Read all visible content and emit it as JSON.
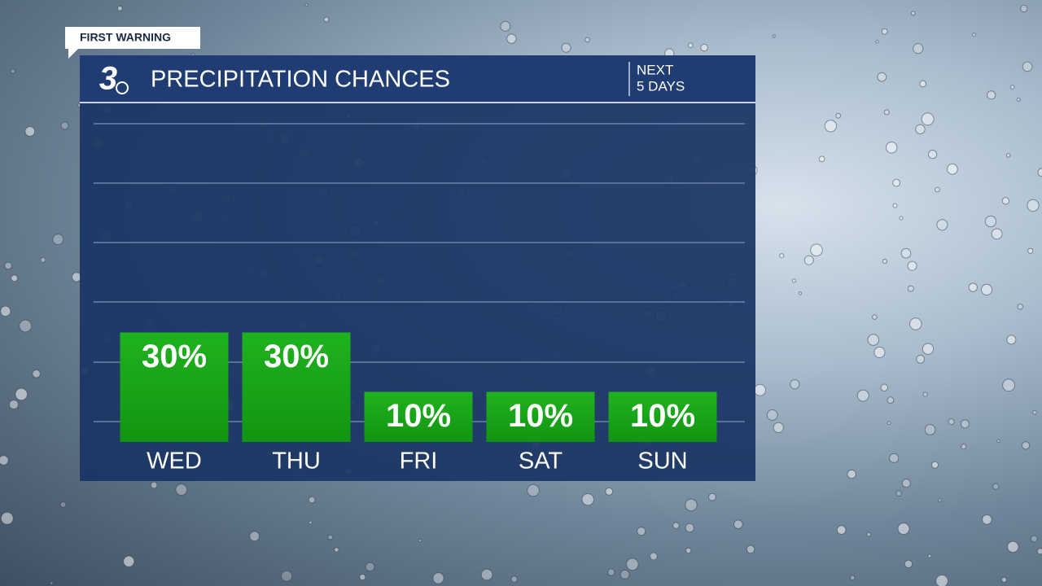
{
  "branding": {
    "badge": "FIRST WARNING",
    "logo": "3"
  },
  "chart_data": {
    "type": "bar",
    "title": "PRECIPITATION CHANCES",
    "subtitle": [
      "NEXT",
      "5 DAYS"
    ],
    "categories": [
      "WED",
      "THU",
      "FRI",
      "SAT",
      "SUN"
    ],
    "values": [
      30,
      30,
      10,
      10,
      10
    ],
    "value_labels": [
      "30%",
      "30%",
      "10%",
      "10%",
      "10%"
    ],
    "color": "#17a317"
  }
}
